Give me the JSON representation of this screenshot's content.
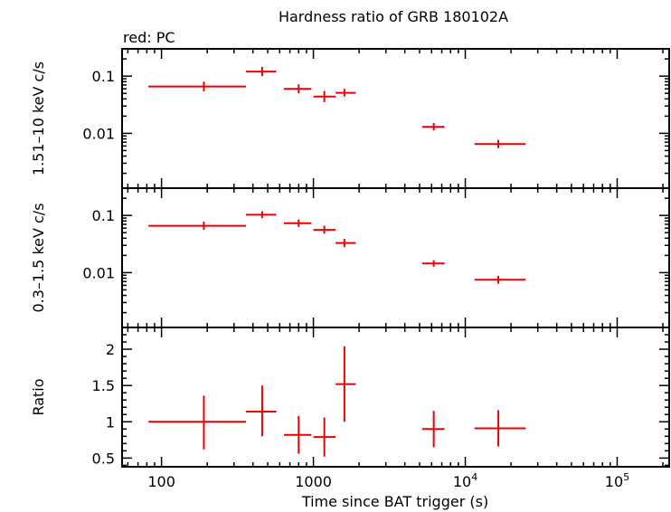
{
  "chart_data": {
    "type": "scatter",
    "title": "Hardness ratio of GRB 180102A",
    "subtitle": "red: PC",
    "xlabel": "Time since BAT trigger (s)",
    "xscale": "log",
    "xlim": [
      55,
      220000
    ],
    "x_ticks": [
      {
        "v": 100,
        "label": "100"
      },
      {
        "v": 1000,
        "label": "1000"
      },
      {
        "v": 10000,
        "label": "10",
        "sup": "4"
      },
      {
        "v": 100000,
        "label": "10",
        "sup": "5"
      }
    ],
    "series_color": "#ee0000",
    "panels": [
      {
        "ylabel": "1.51–10 keV c/s",
        "yscale": "log",
        "ylim": [
          0.0011,
          0.3
        ],
        "y_ticks": [
          {
            "v": 0.1,
            "label": "0.1"
          },
          {
            "v": 0.01,
            "label": "0.01"
          }
        ],
        "points": [
          {
            "x": 190,
            "xlo": 82,
            "xhi": 360,
            "y": 0.066,
            "ylo": 0.054,
            "yhi": 0.08
          },
          {
            "x": 460,
            "xlo": 360,
            "xhi": 570,
            "y": 0.12,
            "ylo": 0.1,
            "yhi": 0.145
          },
          {
            "x": 800,
            "xlo": 640,
            "xhi": 970,
            "y": 0.06,
            "ylo": 0.05,
            "yhi": 0.072
          },
          {
            "x": 1180,
            "xlo": 1000,
            "xhi": 1400,
            "y": 0.044,
            "ylo": 0.035,
            "yhi": 0.055
          },
          {
            "x": 1600,
            "xlo": 1400,
            "xhi": 1900,
            "y": 0.051,
            "ylo": 0.044,
            "yhi": 0.06
          },
          {
            "x": 6200,
            "xlo": 5200,
            "xhi": 7300,
            "y": 0.013,
            "ylo": 0.0112,
            "yhi": 0.0152
          },
          {
            "x": 16500,
            "xlo": 11500,
            "xhi": 25000,
            "y": 0.0065,
            "ylo": 0.0055,
            "yhi": 0.0077
          }
        ]
      },
      {
        "ylabel": "0.3–1.5 keV c/s",
        "yscale": "log",
        "ylim": [
          0.0011,
          0.3
        ],
        "y_ticks": [
          {
            "v": 0.1,
            "label": "0.1"
          },
          {
            "v": 0.01,
            "label": "0.01"
          }
        ],
        "points": [
          {
            "x": 190,
            "xlo": 82,
            "xhi": 360,
            "y": 0.066,
            "ylo": 0.056,
            "yhi": 0.078
          },
          {
            "x": 460,
            "xlo": 360,
            "xhi": 570,
            "y": 0.103,
            "ylo": 0.09,
            "yhi": 0.118
          },
          {
            "x": 800,
            "xlo": 640,
            "xhi": 970,
            "y": 0.073,
            "ylo": 0.063,
            "yhi": 0.085
          },
          {
            "x": 1180,
            "xlo": 1000,
            "xhi": 1400,
            "y": 0.056,
            "ylo": 0.048,
            "yhi": 0.066
          },
          {
            "x": 1600,
            "xlo": 1400,
            "xhi": 1900,
            "y": 0.033,
            "ylo": 0.028,
            "yhi": 0.039
          },
          {
            "x": 6200,
            "xlo": 5200,
            "xhi": 7300,
            "y": 0.0145,
            "ylo": 0.0127,
            "yhi": 0.0165
          },
          {
            "x": 16500,
            "xlo": 11500,
            "xhi": 25000,
            "y": 0.0075,
            "ylo": 0.0064,
            "yhi": 0.0088
          }
        ]
      },
      {
        "ylabel": "Ratio",
        "yscale": "linear",
        "ylim": [
          0.38,
          2.3
        ],
        "y_ticks": [
          {
            "v": 0.5,
            "label": "0.5"
          },
          {
            "v": 1,
            "label": "1"
          },
          {
            "v": 1.5,
            "label": "1.5"
          },
          {
            "v": 2,
            "label": "2"
          }
        ],
        "points": [
          {
            "x": 190,
            "xlo": 82,
            "xhi": 360,
            "y": 1.0,
            "ylo": 0.62,
            "yhi": 1.36
          },
          {
            "x": 460,
            "xlo": 360,
            "xhi": 570,
            "y": 1.14,
            "ylo": 0.8,
            "yhi": 1.5
          },
          {
            "x": 800,
            "xlo": 640,
            "xhi": 970,
            "y": 0.82,
            "ylo": 0.56,
            "yhi": 1.08
          },
          {
            "x": 1180,
            "xlo": 1000,
            "xhi": 1400,
            "y": 0.79,
            "ylo": 0.52,
            "yhi": 1.06
          },
          {
            "x": 1600,
            "xlo": 1400,
            "xhi": 1900,
            "y": 1.52,
            "ylo": 1.0,
            "yhi": 2.04
          },
          {
            "x": 6200,
            "xlo": 5200,
            "xhi": 7300,
            "y": 0.9,
            "ylo": 0.65,
            "yhi": 1.15
          },
          {
            "x": 16500,
            "xlo": 11500,
            "xhi": 25000,
            "y": 0.91,
            "ylo": 0.66,
            "yhi": 1.16
          }
        ]
      }
    ]
  }
}
